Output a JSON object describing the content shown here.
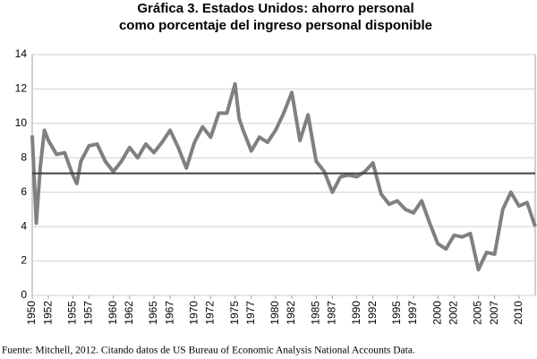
{
  "chart_data": {
    "type": "line",
    "title": "Gráfica 3. Estados Unidos: ahorro personal",
    "subtitle": "como porcentaje del ingreso personal disponible",
    "source": "Fuente: Mitchell, 2012. Citando datos de US Bureau of Economic Analysis National Accounts Data.",
    "xlim": [
      1950,
      2012
    ],
    "xticks": [
      1950,
      1952,
      1955,
      1957,
      1960,
      1962,
      1965,
      1967,
      1970,
      1972,
      1975,
      1977,
      1980,
      1982,
      1985,
      1987,
      1990,
      1992,
      1995,
      1997,
      2000,
      2002,
      2005,
      2007,
      2010
    ],
    "ylim": [
      0,
      14
    ],
    "yticks": [
      0,
      2,
      4,
      6,
      8,
      10,
      12,
      14
    ],
    "grid": true,
    "reference_line": 7.1,
    "reference_color": "#404040",
    "series": [
      {
        "color": "#808080",
        "x": [
          1950,
          1950.5,
          1951,
          1951.5,
          1952,
          1953,
          1954,
          1955,
          1955.5,
          1956,
          1957,
          1958,
          1959,
          1960,
          1961,
          1962,
          1963,
          1964,
          1965,
          1966,
          1967,
          1968,
          1969,
          1970,
          1971,
          1972,
          1973,
          1974,
          1975,
          1975.5,
          1976,
          1977,
          1978,
          1979,
          1980,
          1981,
          1982,
          1983,
          1984,
          1985,
          1986,
          1987,
          1988,
          1989,
          1990,
          1991,
          1992,
          1993,
          1994,
          1995,
          1996,
          1997,
          1998,
          1999,
          2000,
          2001,
          2002,
          2003,
          2004,
          2005,
          2006,
          2007,
          2008,
          2009,
          2010,
          2011,
          2012
        ],
        "values": [
          9.3,
          4.2,
          7.5,
          9.6,
          9.0,
          8.2,
          8.3,
          7.0,
          6.5,
          7.8,
          8.7,
          8.8,
          7.8,
          7.2,
          7.8,
          8.6,
          8.0,
          8.8,
          8.3,
          8.9,
          9.6,
          8.6,
          7.4,
          8.9,
          9.8,
          9.2,
          10.6,
          10.6,
          12.3,
          10.3,
          9.6,
          8.4,
          9.2,
          8.9,
          9.6,
          10.6,
          11.8,
          9.0,
          10.5,
          7.8,
          7.2,
          6.0,
          6.9,
          7.0,
          6.9,
          7.2,
          7.7,
          5.9,
          5.3,
          5.5,
          5.0,
          4.8,
          5.5,
          4.2,
          3.0,
          2.7,
          3.5,
          3.4,
          3.6,
          1.5,
          2.5,
          2.4,
          5.0,
          6.0,
          5.2,
          5.4,
          4.0
        ]
      }
    ]
  }
}
